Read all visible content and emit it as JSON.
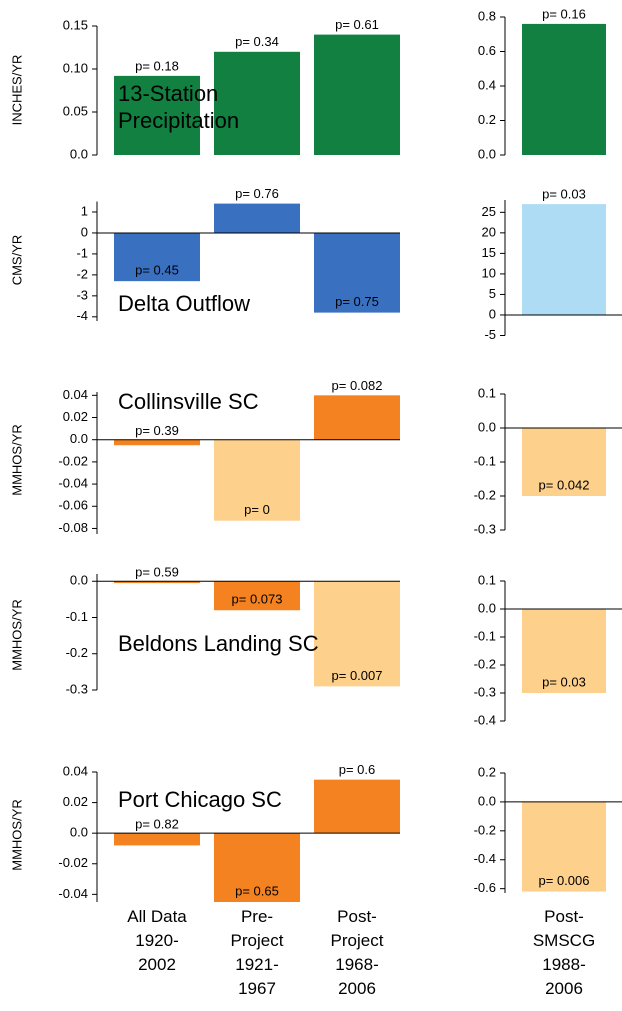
{
  "chart_data": [
    {
      "type": "bar",
      "title": "13-Station\nPrecipitation",
      "ylabel": "INCHES/YR",
      "categories": [
        null,
        null,
        null
      ],
      "values": [
        0.092,
        0.12,
        0.14
      ],
      "annotations": [
        "p= 0.18",
        "p= 0.34",
        "p= 0.61"
      ],
      "colors": [
        "#118040",
        "#118040",
        "#118040"
      ],
      "ylim": [
        0,
        0.15
      ],
      "yticks": [
        {
          "value": 0,
          "label": "0.0"
        },
        0.05,
        {
          "value": 0.1,
          "label": "0.10"
        },
        0.15
      ]
    },
    {
      "type": "bar",
      "categories": [
        null
      ],
      "values": [
        0.76
      ],
      "annotations": [
        "p= 0.16"
      ],
      "colors": [
        "#118040"
      ],
      "ylim": [
        0,
        0.8
      ],
      "yticks": [
        {
          "value": 0,
          "label": "0.0"
        },
        0.2,
        0.4,
        0.6,
        0.8
      ]
    },
    {
      "type": "bar",
      "title": "Delta Outflow",
      "ylabel": "CMS/YR",
      "categories": [
        null,
        null,
        null
      ],
      "values": [
        -2.3,
        1.4,
        -3.8
      ],
      "annotations": [
        "p= 0.45",
        "p= 0.76",
        "p= 0.75"
      ],
      "colors": [
        "#3a70c0",
        "#3a70c0",
        "#3a70c0"
      ],
      "ylim": [
        -4.2,
        1.5
      ],
      "yticks": [
        -4,
        -3,
        -2,
        -1,
        0,
        1
      ]
    },
    {
      "type": "bar",
      "categories": [
        null
      ],
      "values": [
        27
      ],
      "annotations": [
        "p= 0.03"
      ],
      "colors": [
        "#aedcf5"
      ],
      "ylim": [
        -5,
        28
      ],
      "yticks": [
        -5,
        0,
        5,
        10,
        15,
        20,
        25
      ]
    },
    {
      "type": "bar",
      "title": "Collinsville SC",
      "ylabel": "MMHOS/YR",
      "categories": [
        null,
        null,
        null
      ],
      "values": [
        -0.005,
        -0.073,
        0.04
      ],
      "annotations": [
        "p= 0.39",
        "p= 0",
        "p= 0.082"
      ],
      "colors": [
        "#f58220",
        "#fdd08c",
        "#f58220"
      ],
      "ylim": [
        -0.085,
        0.043
      ],
      "yticks": [
        -0.08,
        -0.06,
        -0.04,
        -0.02,
        {
          "value": 0,
          "label": "0.0"
        },
        0.02,
        0.04
      ]
    },
    {
      "type": "bar",
      "categories": [
        null
      ],
      "values": [
        -0.2
      ],
      "annotations": [
        "p= 0.042"
      ],
      "colors": [
        "#fdd08c"
      ],
      "ylim": [
        -0.3,
        0.1
      ],
      "yticks": [
        -0.3,
        -0.2,
        -0.1,
        {
          "value": 0,
          "label": "0.0"
        },
        0.1
      ]
    },
    {
      "type": "bar",
      "title": "Beldons Landing SC",
      "ylabel": "MMHOS/YR",
      "categories": [
        null,
        null,
        null
      ],
      "values": [
        -0.005,
        -0.08,
        -0.29
      ],
      "annotations": [
        "p= 0.59",
        "p= 0.073",
        "p= 0.007"
      ],
      "colors": [
        "#f58220",
        "#f58220",
        "#fdd08c"
      ],
      "ylim": [
        -0.3,
        0.02
      ],
      "yticks": [
        -0.3,
        -0.2,
        -0.1,
        {
          "value": 0,
          "label": "0.0"
        }
      ]
    },
    {
      "type": "bar",
      "categories": [
        null
      ],
      "values": [
        -0.3
      ],
      "annotations": [
        "p= 0.03"
      ],
      "colors": [
        "#fdd08c"
      ],
      "ylim": [
        -0.4,
        0.1
      ],
      "yticks": [
        -0.4,
        -0.3,
        -0.2,
        -0.1,
        {
          "value": 0,
          "label": "0.0"
        },
        0.1
      ]
    },
    {
      "type": "bar",
      "title": "Port Chicago SC",
      "ylabel": "MMHOS/YR",
      "categories": [
        "All Data\n1920-\n2002",
        "Pre-\nProject\n1921-\n1967",
        "Post-\nProject\n1968-\n2006"
      ],
      "values": [
        -0.008,
        -0.045,
        0.035
      ],
      "annotations": [
        "p= 0.82",
        "p= 0.65",
        "p= 0.6"
      ],
      "colors": [
        "#f58220",
        "#f58220",
        "#f58220"
      ],
      "ylim": [
        -0.045,
        0.04
      ],
      "yticks": [
        -0.04,
        -0.02,
        {
          "value": 0,
          "label": "0.0"
        },
        0.02,
        0.04
      ]
    },
    {
      "type": "bar",
      "categories": [
        "Post-\nSMSCG\n1988-\n2006"
      ],
      "values": [
        -0.62
      ],
      "annotations": [
        "p= 0.006"
      ],
      "colors": [
        "#fdd08c"
      ],
      "ylim": [
        -0.63,
        0.2
      ],
      "yticks": [
        -0.6,
        -0.4,
        -0.2,
        {
          "value": 0,
          "label": "0.0"
        },
        0.2
      ]
    }
  ]
}
